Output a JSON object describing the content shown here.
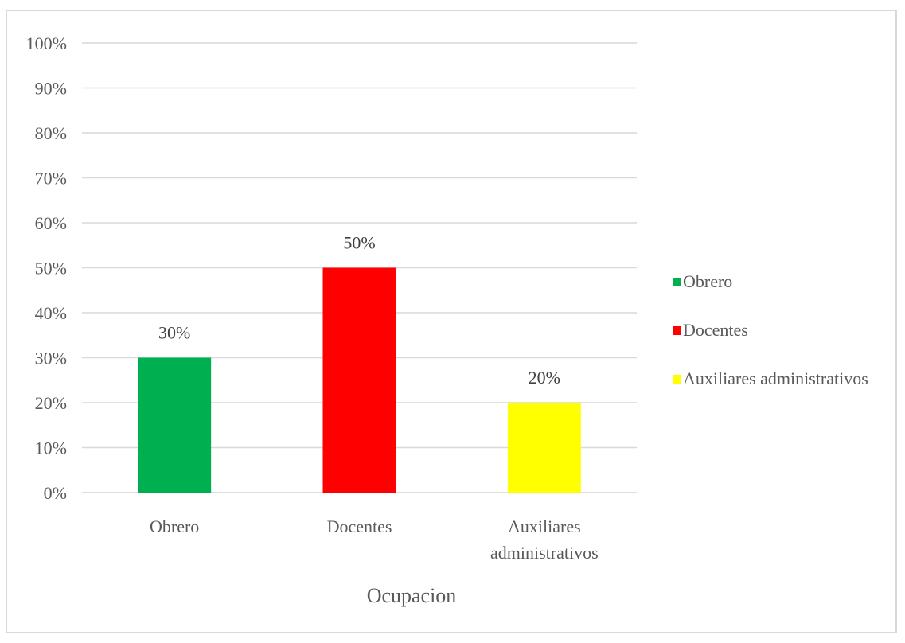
{
  "chart_data": {
    "type": "bar",
    "categories": [
      "Obrero",
      "Docentes",
      "Auxiliares administrativos"
    ],
    "category_lines": [
      [
        "Obrero"
      ],
      [
        "Docentes"
      ],
      [
        "Auxiliares",
        "administrativos"
      ]
    ],
    "values": [
      30,
      50,
      20
    ],
    "data_labels": [
      "30%",
      "50%",
      "20%"
    ],
    "colors": [
      "#00b050",
      "#ff0000",
      "#ffff00"
    ],
    "xlabel": "Ocupacion",
    "ylabel": "",
    "ylim": [
      0,
      100
    ],
    "yticks": [
      0,
      10,
      20,
      30,
      40,
      50,
      60,
      70,
      80,
      90,
      100
    ],
    "ytick_labels": [
      "0%",
      "10%",
      "20%",
      "30%",
      "40%",
      "50%",
      "60%",
      "70%",
      "80%",
      "90%",
      "100%"
    ],
    "grid": true,
    "legend": {
      "position": "right",
      "entries": [
        "Obrero",
        "Docentes",
        "Auxiliares administrativos"
      ]
    }
  }
}
